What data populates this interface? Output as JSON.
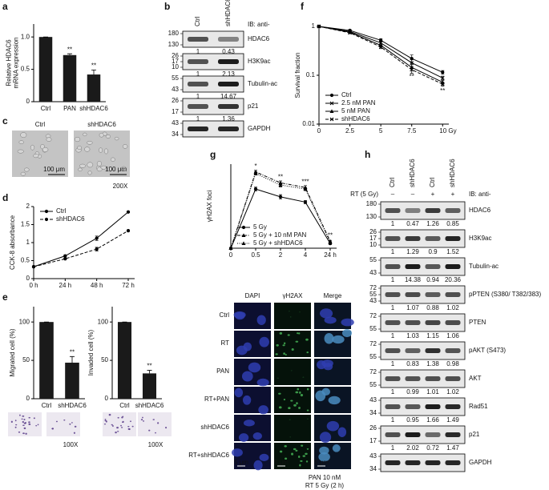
{
  "panels": [
    "a",
    "b",
    "c",
    "d",
    "e",
    "f",
    "g",
    "h"
  ],
  "chart_data": [
    {
      "type": "bar",
      "ylabel": [
        "Relative HDAC6",
        "mRNA expression"
      ],
      "categories": [
        "Ctrl",
        "PAN",
        "shHDAC6"
      ],
      "values": [
        1,
        0.72,
        0.42
      ],
      "errors": [
        0,
        0.02,
        0.07
      ],
      "annotations": [
        null,
        "**",
        "**"
      ],
      "color": "#1a1a1a",
      "ylim": [
        0,
        1.2
      ],
      "yticks": [
        0,
        0.5,
        {
          "value": 1,
          "label": "1.0"
        }
      ]
    },
    {
      "type": "line",
      "ylabel": "CCK-8 absorbance",
      "categories": [
        "0 h",
        "24 h",
        "48 h",
        "72 h"
      ],
      "series": [
        {
          "name": "Ctrl",
          "color": "#000000",
          "line_style": "solid",
          "marker": "circle",
          "values": [
            0.33,
            0.63,
            1.12,
            1.85
          ],
          "errors": [
            0.02,
            0.03,
            0.06,
            0.02
          ]
        },
        {
          "name": "shHDAC6",
          "color": "#000000",
          "line_style": "dashed",
          "marker": "circle",
          "values": [
            0.33,
            0.55,
            0.82,
            1.33
          ],
          "errors": [
            0.02,
            0.02,
            0.05,
            0.02
          ]
        }
      ],
      "ylim": [
        0,
        2
      ],
      "yticks": [
        0,
        0.5,
        1,
        1.5,
        2
      ],
      "legend": "top-left"
    },
    {
      "type": "bar",
      "ylabel": "Migrated cell (%)",
      "categories": [
        "Ctrl",
        "shHDAC6"
      ],
      "values": [
        100,
        47
      ],
      "errors": [
        0,
        8
      ],
      "annotations": [
        null,
        "**"
      ],
      "color": "#1a1a1a",
      "ylim": [
        0,
        120
      ],
      "yticks": [
        0,
        50,
        100
      ]
    },
    {
      "type": "bar",
      "ylabel": "Invaded cell (%)",
      "categories": [
        "Ctrl",
        "shHDAC6"
      ],
      "values": [
        100,
        33
      ],
      "errors": [
        0,
        4
      ],
      "annotations": [
        null,
        "**"
      ],
      "color": "#1a1a1a",
      "ylim": [
        0,
        120
      ],
      "yticks": [
        0,
        50,
        100
      ]
    },
    {
      "type": "line",
      "ylabel": "Survival fraction",
      "x": [
        0,
        2.5,
        5,
        7.5,
        10
      ],
      "xlim": [
        0,
        10.5
      ],
      "xticks": [
        0,
        2.5,
        5,
        7.5,
        {
          "value": 10,
          "label": "10 Gy"
        }
      ],
      "log_y": true,
      "ylim": [
        0.01,
        1
      ],
      "yticks": [
        0.01,
        0.1,
        1
      ],
      "series": [
        {
          "name": "Ctrl",
          "color": "#000000",
          "line_style": "solid",
          "marker": "circle",
          "values": [
            1,
            0.83,
            0.52,
            0.22,
            0.115
          ],
          "errors": [
            0,
            0.03,
            0.04,
            0.04,
            0.01
          ]
        },
        {
          "name": "2.5 nM PAN",
          "color": "#000000",
          "line_style": "solid",
          "marker": "cross",
          "values": [
            1,
            0.79,
            0.46,
            0.18,
            0.088
          ],
          "errors": [
            0,
            0.03,
            0.04,
            0.03,
            0.008
          ]
        },
        {
          "name": "5 nM PAN",
          "color": "#000000",
          "line_style": "solid",
          "marker": "triangle",
          "values": [
            1,
            0.76,
            0.41,
            0.145,
            0.072
          ],
          "errors": [
            0,
            0.03,
            0.03,
            0.02,
            0.006
          ]
        },
        {
          "name": "shHDAC6",
          "color": "#000000",
          "line_style": "dashed",
          "marker": "cross",
          "values": [
            1,
            0.74,
            0.38,
            0.13,
            0.066
          ],
          "errors": [
            0,
            0.03,
            0.03,
            0.02,
            0.006
          ]
        }
      ],
      "annotations": [
        null,
        null,
        null,
        "**",
        "**"
      ],
      "annotation_side": "below",
      "legend": "bottom-left"
    },
    {
      "type": "line",
      "ylabel": "γH2AX foci",
      "categories": [
        "0",
        "0.5",
        "2",
        "4",
        "24 h"
      ],
      "ylim": [
        0,
        27
      ],
      "series": [
        {
          "name": "5 Gy",
          "color": "#000000",
          "line_style": "solid",
          "marker": "circle",
          "values": [
            0,
            19,
            16.5,
            14.8,
            1.5
          ],
          "errors": [
            0,
            0.6,
            0.7,
            0.5,
            0.3
          ]
        },
        {
          "name": "5 Gy + 10 nM PAN",
          "color": "#000000",
          "line_style": "dashdot",
          "marker": "triangle",
          "values": [
            0,
            24.5,
            21,
            19.5,
            2.2
          ],
          "errors": [
            0,
            0.5,
            0.6,
            0.6,
            0.3
          ]
        },
        {
          "name": "5 Gy + shHDAC6",
          "color": "#000000",
          "line_style": "dotted",
          "marker": "triangle",
          "values": [
            0,
            24,
            20.3,
            19,
            1.8
          ],
          "errors": [
            0,
            0.5,
            0.6,
            0.5,
            0.3
          ]
        }
      ],
      "annotations": [
        null,
        "*",
        "**",
        "***",
        "**"
      ],
      "annotation_side": "above",
      "legend": "bottom-left"
    }
  ],
  "blot_b": {
    "lanes": [
      "Ctrl",
      "shHDAC6"
    ],
    "ib_label": "IB: anti-",
    "rows": [
      {
        "name": "HDAC6",
        "markers": [
          180,
          130
        ],
        "quant": [
          1,
          0.43
        ]
      },
      {
        "name": "H3K9ac",
        "markers": [
          26,
          17,
          10
        ],
        "quant": [
          1,
          2.13
        ]
      },
      {
        "name": "Tubulin-ac",
        "markers": [
          55,
          43
        ],
        "quant": [
          1,
          14.67
        ]
      },
      {
        "name": "p21",
        "markers": [
          26,
          17
        ],
        "quant": [
          1,
          1.36
        ]
      },
      {
        "name": "GAPDH",
        "markers": [
          43,
          34
        ]
      }
    ]
  },
  "blot_h": {
    "lanes": [
      "Ctrl",
      "shHDAC6",
      "Ctrl",
      "shHDAC6"
    ],
    "rt_label": "RT (5 Gy)",
    "rt": [
      "–",
      "–",
      "+",
      "+"
    ],
    "ib_label": "IB: anti-",
    "rows": [
      {
        "name": "HDAC6",
        "markers": [
          180,
          130
        ],
        "quant": [
          1,
          0.47,
          1.26,
          0.85
        ]
      },
      {
        "name": "H3K9ac",
        "markers": [
          26,
          17,
          10
        ],
        "quant": [
          1,
          1.29,
          0.9,
          1.52
        ]
      },
      {
        "name": "Tubulin-ac",
        "markers": [
          55,
          43
        ],
        "quant": [
          1,
          14.38,
          0.94,
          20.36
        ]
      },
      {
        "name": "pPTEN (S380/ T382/383)",
        "markers": [
          72,
          55,
          43
        ],
        "quant": [
          1,
          1.07,
          0.88,
          1.02
        ]
      },
      {
        "name": "PTEN",
        "markers": [
          72,
          55
        ],
        "quant": [
          1,
          1.03,
          1.15,
          1.06
        ]
      },
      {
        "name": "pAKT (S473)",
        "markers": [
          72,
          55
        ],
        "quant": [
          1,
          0.83,
          1.38,
          0.98
        ]
      },
      {
        "name": "AKT",
        "markers": [
          72,
          55
        ],
        "quant": [
          1,
          0.99,
          1.01,
          1.02
        ]
      },
      {
        "name": "Rad51",
        "markers": [
          43,
          34
        ],
        "quant": [
          1,
          0.95,
          1.66,
          1.49
        ]
      },
      {
        "name": "p21",
        "markers": [
          26,
          17
        ],
        "quant": [
          1,
          2.02,
          0.72,
          1.47
        ]
      },
      {
        "name": "GAPDH",
        "markers": [
          43,
          34
        ]
      }
    ]
  },
  "image_c": {
    "columns": [
      "Ctrl",
      "shHDAC6"
    ],
    "scale_bar": "100 μm",
    "magnification": "200X"
  },
  "image_e": {
    "magnification": "100X"
  },
  "image_g": {
    "columns": [
      "DAPI",
      "γH2AX",
      "Merge"
    ],
    "rows": [
      "Ctrl",
      "RT",
      "PAN",
      "RT+PAN",
      "shHDAC6",
      "RT+shHDAC6"
    ],
    "scale_bar": "5 μm",
    "caption": [
      "PAN 10 nM",
      "RT 5 Gy (2 h)"
    ]
  }
}
